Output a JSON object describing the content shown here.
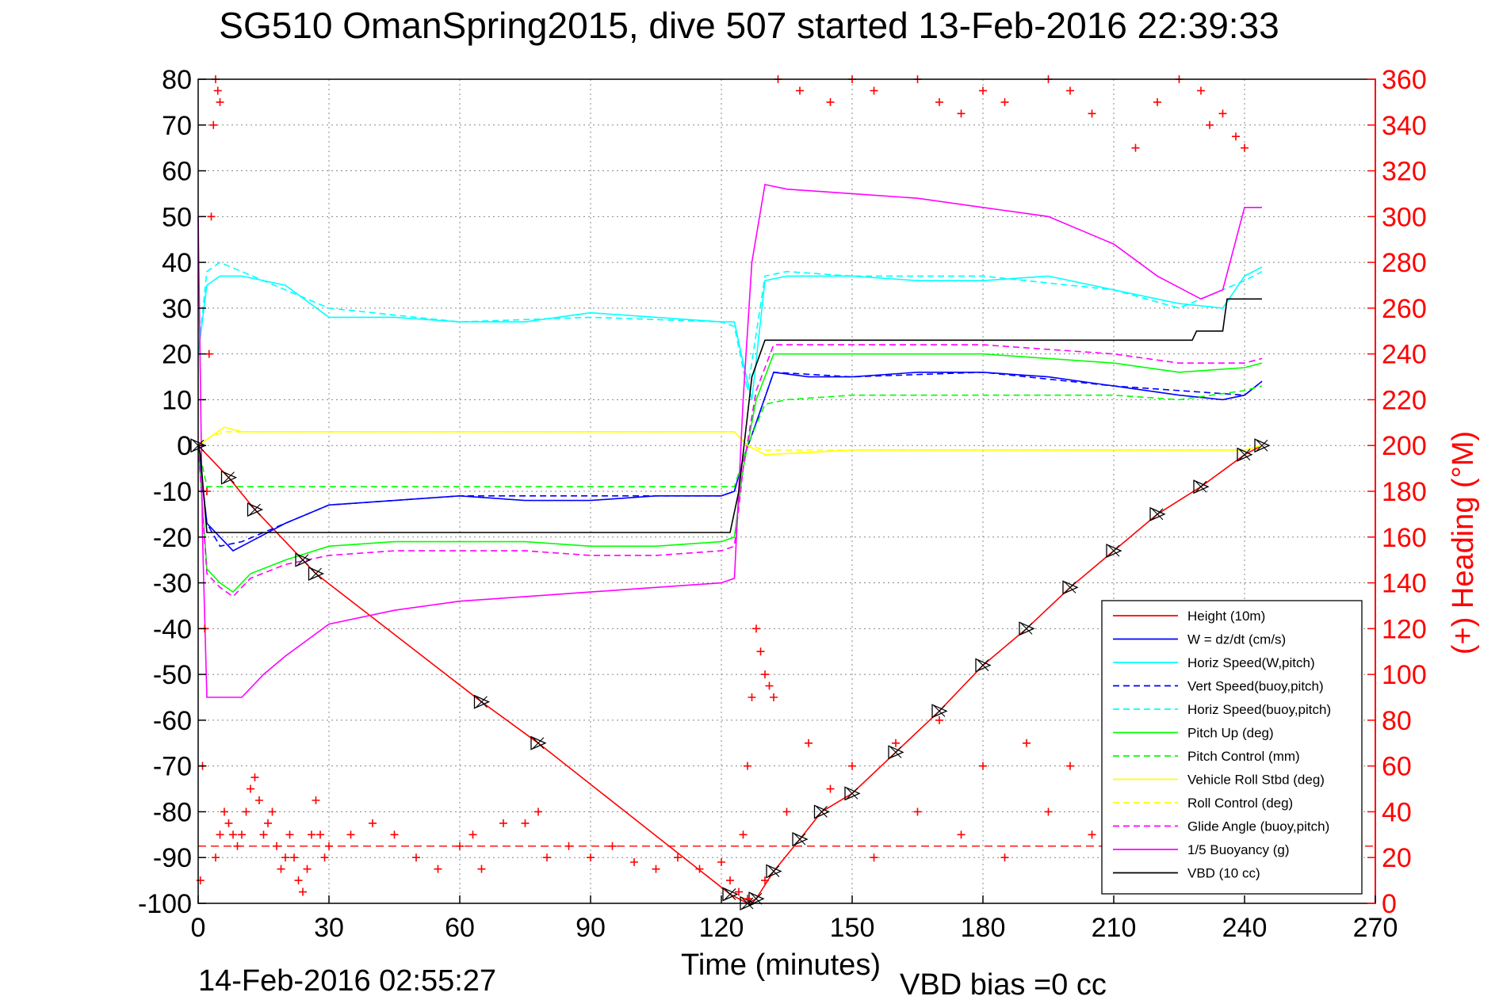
{
  "colors": {
    "height": "#ff0000",
    "w": "#0000ff",
    "horiz_speed": "#00ffff",
    "pitch": "#00ff00",
    "roll": "#ffff00",
    "glide": "#ff00ff",
    "buoyancy": "#ff00ff",
    "vbd": "#000000",
    "heading": "#ff0000"
  },
  "chart_data": {
    "type": "line",
    "title": "SG510 OmanSpring2015, dive 507 started 13-Feb-2016 22:39:33",
    "xlabel": "Time (minutes)",
    "ylabel_right": "(+) Heading (°M)",
    "footer_left": "14-Feb-2016 02:55:27",
    "footer_right": "VBD bias =0 cc",
    "xlim": [
      0,
      270
    ],
    "ylim": [
      -100,
      80
    ],
    "ylim_right": [
      0,
      360
    ],
    "xticks": [
      "0",
      "30",
      "60",
      "90",
      "120",
      "150",
      "180",
      "210",
      "240",
      "270"
    ],
    "yticks": [
      "80",
      "70",
      "60",
      "50",
      "40",
      "30",
      "20",
      "10",
      "0",
      "-10",
      "-20",
      "-30",
      "-40",
      "-50",
      "-60",
      "-70",
      "-80",
      "-90",
      "-100"
    ],
    "yticks_right": [
      "360",
      "340",
      "320",
      "300",
      "280",
      "260",
      "240",
      "220",
      "200",
      "180",
      "160",
      "140",
      "120",
      "100",
      "80",
      "60",
      "40",
      "20",
      "0"
    ],
    "grid": true,
    "legend_position": "bottom-right",
    "series": [
      {
        "name": "Height (10m)",
        "style": "solid",
        "color_key": "height",
        "x": [
          0,
          7,
          13,
          24,
          27,
          65,
          78,
          122,
          126,
          128,
          132,
          138,
          143,
          150,
          160,
          170,
          180,
          190,
          200,
          210,
          220,
          230,
          240,
          244
        ],
        "y": [
          0,
          -7,
          -14,
          -25,
          -28,
          -56,
          -65,
          -98,
          -100,
          -99,
          -93,
          -86,
          -80,
          -76,
          -67,
          -58,
          -48,
          -40,
          -31,
          -23,
          -15,
          -9,
          -2,
          0
        ]
      },
      {
        "name": "W = dz/dt (cm/s)",
        "style": "solid",
        "color_key": "w",
        "x": [
          0,
          2,
          5,
          8,
          12,
          20,
          30,
          45,
          60,
          75,
          90,
          105,
          120,
          123,
          125,
          128,
          132,
          140,
          150,
          165,
          180,
          195,
          210,
          225,
          235,
          240,
          244
        ],
        "y": [
          0,
          -17,
          -20,
          -23,
          -21,
          -17,
          -13,
          -12,
          -11,
          -12,
          -12,
          -11,
          -11,
          -10,
          -3,
          5,
          16,
          15,
          15,
          16,
          16,
          15,
          13,
          11,
          10,
          11,
          14
        ]
      },
      {
        "name": "Horiz Speed(W,pitch)",
        "style": "solid",
        "color_key": "horiz_speed",
        "x": [
          0,
          2,
          5,
          10,
          20,
          30,
          45,
          60,
          75,
          90,
          105,
          120,
          123,
          125,
          127,
          130,
          135,
          150,
          165,
          180,
          195,
          210,
          225,
          235,
          240,
          244
        ],
        "y": [
          20,
          35,
          37,
          37,
          35,
          28,
          28,
          27,
          27,
          29,
          28,
          27,
          27,
          18,
          10,
          36,
          37,
          37,
          36,
          36,
          37,
          34,
          31,
          30,
          37,
          39
        ]
      },
      {
        "name": "Vert Speed(buoy,pitch)",
        "style": "dashed",
        "color_key": "w",
        "x": [
          0,
          2,
          5,
          10,
          20,
          30,
          60,
          90,
          120,
          123,
          125,
          128,
          132,
          150,
          180,
          210,
          240,
          244
        ],
        "y": [
          0,
          -17,
          -22,
          -21,
          -17,
          -13,
          -11,
          -11,
          -11,
          -10,
          -3,
          5,
          16,
          15,
          16,
          13,
          11,
          14
        ]
      },
      {
        "name": "Horiz Speed(buoy,pitch)",
        "style": "dashed",
        "color_key": "horiz_speed",
        "x": [
          0,
          2,
          5,
          10,
          20,
          30,
          60,
          90,
          120,
          123,
          126,
          130,
          135,
          150,
          180,
          210,
          225,
          240,
          244
        ],
        "y": [
          20,
          38,
          40,
          38,
          34,
          30,
          27,
          28,
          27,
          26,
          12,
          37,
          38,
          37,
          37,
          34,
          30,
          36,
          38
        ]
      },
      {
        "name": "Pitch Up (deg)",
        "style": "solid",
        "color_key": "pitch",
        "x": [
          0,
          2,
          5,
          8,
          12,
          20,
          30,
          45,
          60,
          75,
          90,
          105,
          120,
          123,
          125,
          128,
          132,
          150,
          180,
          210,
          225,
          240,
          244
        ],
        "y": [
          0,
          -27,
          -30,
          -32,
          -28,
          -25,
          -22,
          -21,
          -21,
          -21,
          -22,
          -22,
          -21,
          -20,
          -5,
          10,
          20,
          20,
          20,
          18,
          16,
          17,
          18
        ]
      },
      {
        "name": "Pitch Control (mm)",
        "style": "dashed",
        "color_key": "pitch",
        "x": [
          0,
          2,
          5,
          30,
          60,
          90,
          120,
          123,
          126,
          130,
          135,
          150,
          180,
          210,
          225,
          240,
          244
        ],
        "y": [
          0,
          -9,
          -9,
          -9,
          -9,
          -9,
          -9,
          -9,
          0,
          9,
          10,
          11,
          11,
          11,
          10,
          12,
          13
        ]
      },
      {
        "name": "Vehicle Roll Stbd (deg)",
        "style": "solid",
        "color_key": "roll",
        "x": [
          0,
          3,
          6,
          10,
          20,
          30,
          60,
          90,
          120,
          123,
          126,
          130,
          150,
          180,
          210,
          240,
          244
        ],
        "y": [
          0,
          2,
          4,
          3,
          3,
          3,
          3,
          3,
          3,
          3,
          0,
          -2,
          -1,
          -1,
          -1,
          -1,
          0
        ]
      },
      {
        "name": "Roll Control (deg)",
        "style": "dashed",
        "color_key": "roll",
        "x": [
          0,
          3,
          6,
          30,
          60,
          90,
          120,
          123,
          126,
          130,
          150,
          180,
          210,
          240,
          244
        ],
        "y": [
          0,
          2,
          3,
          3,
          3,
          3,
          3,
          3,
          0,
          -1,
          -1,
          -1,
          -1,
          -1,
          0
        ]
      },
      {
        "name": "Glide Angle (buoy,pitch)",
        "style": "dashed",
        "color_key": "glide",
        "x": [
          0,
          2,
          5,
          8,
          12,
          20,
          30,
          45,
          60,
          75,
          90,
          105,
          120,
          123,
          125,
          128,
          132,
          150,
          180,
          210,
          225,
          240,
          244
        ],
        "y": [
          0,
          -28,
          -31,
          -33,
          -29,
          -26,
          -24,
          -23,
          -23,
          -23,
          -24,
          -24,
          -23,
          -22,
          -5,
          12,
          22,
          22,
          22,
          20,
          18,
          18,
          19
        ]
      },
      {
        "name": "1/5 Buoyancy (g)",
        "style": "solid",
        "color_key": "buoyancy",
        "x": [
          0,
          1,
          2,
          10,
          15,
          20,
          30,
          45,
          60,
          75,
          90,
          105,
          120,
          123,
          125,
          127,
          130,
          135,
          150,
          165,
          180,
          195,
          210,
          220,
          230,
          235,
          240,
          244
        ],
        "y": [
          50,
          -20,
          -55,
          -55,
          -50,
          -46,
          -39,
          -36,
          -34,
          -33,
          -32,
          -31,
          -30,
          -29,
          10,
          40,
          57,
          56,
          55,
          54,
          52,
          50,
          44,
          37,
          32,
          34,
          52,
          52
        ]
      },
      {
        "name": "VBD (10 cc)",
        "style": "solid",
        "color_key": "vbd",
        "x": [
          0,
          0.5,
          2,
          60,
          90,
          122,
          124,
          127,
          130,
          150,
          180,
          210,
          228,
          229,
          235,
          236,
          240,
          244
        ],
        "y": [
          0,
          -2,
          -19,
          -19,
          -19,
          -19,
          -10,
          15,
          23,
          23,
          23,
          23,
          23,
          25,
          25,
          32,
          32,
          32
        ]
      }
    ],
    "heading_markers": {
      "name": "(+) Heading (°M)",
      "style": "plus",
      "axis": "right",
      "segments": [
        {
          "x": [
            0.5,
            1,
            1.5,
            2,
            2.5,
            3,
            3.5,
            4,
            4.5,
            5
          ],
          "y": [
            10,
            60,
            120,
            180,
            240,
            300,
            340,
            360,
            355,
            350
          ]
        },
        {
          "x": [
            4,
            5,
            6,
            7,
            8,
            9,
            10,
            11,
            12,
            13,
            14,
            15,
            16,
            17,
            18,
            19,
            20,
            21,
            22,
            23,
            24,
            25,
            26,
            27,
            28,
            29
          ],
          "y": [
            20,
            30,
            40,
            35,
            30,
            25,
            30,
            40,
            50,
            55,
            45,
            30,
            35,
            40,
            25,
            15,
            20,
            30,
            20,
            10,
            5,
            15,
            30,
            45,
            30,
            20
          ]
        },
        {
          "x": [
            30,
            35,
            40,
            45,
            50,
            55,
            60,
            63,
            65,
            70,
            75,
            78
          ],
          "y": [
            25,
            30,
            35,
            30,
            20,
            15,
            25,
            30,
            15,
            35,
            35,
            40
          ]
        },
        {
          "x": [
            80,
            85,
            90,
            95,
            100,
            105,
            110,
            115,
            120,
            122,
            124,
            126
          ],
          "y": [
            20,
            25,
            20,
            25,
            18,
            15,
            20,
            15,
            18,
            10,
            5,
            2
          ]
        },
        {
          "x": [
            125,
            126,
            127,
            128,
            129,
            130,
            131,
            132
          ],
          "y": [
            30,
            60,
            90,
            120,
            110,
            100,
            95,
            90
          ]
        },
        {
          "x": [
            130,
            135,
            140,
            145,
            150,
            155,
            160,
            165,
            170,
            175,
            180,
            185,
            190,
            195,
            200,
            205,
            210,
            215,
            220,
            225,
            230,
            235,
            240
          ],
          "y": [
            10,
            40,
            70,
            50,
            60,
            20,
            70,
            40,
            80,
            30,
            60,
            20,
            70,
            40,
            60,
            30,
            70,
            20,
            60,
            40,
            80,
            50,
            60
          ]
        },
        {
          "x": [
            133,
            138,
            145,
            150,
            155,
            165,
            170,
            175,
            180,
            185,
            195,
            200,
            205,
            215,
            220,
            225,
            230,
            232,
            235,
            238,
            240
          ],
          "y": [
            360,
            355,
            350,
            360,
            355,
            360,
            350,
            345,
            355,
            350,
            360,
            355,
            345,
            330,
            350,
            360,
            355,
            340,
            345,
            335,
            330
          ]
        }
      ],
      "mean_heading": 25
    },
    "legend": [
      "Height (10m)",
      "W = dz/dt (cm/s)",
      "Horiz Speed(W,pitch)",
      "Vert Speed(buoy,pitch)",
      "Horiz Speed(buoy,pitch)",
      "Pitch Up (deg)",
      "Pitch Control (mm)",
      "Vehicle Roll Stbd (deg)",
      "Roll Control (deg)",
      "Glide Angle (buoy,pitch)",
      "1/5 Buoyancy (g)",
      "VBD (10 cc)"
    ]
  }
}
